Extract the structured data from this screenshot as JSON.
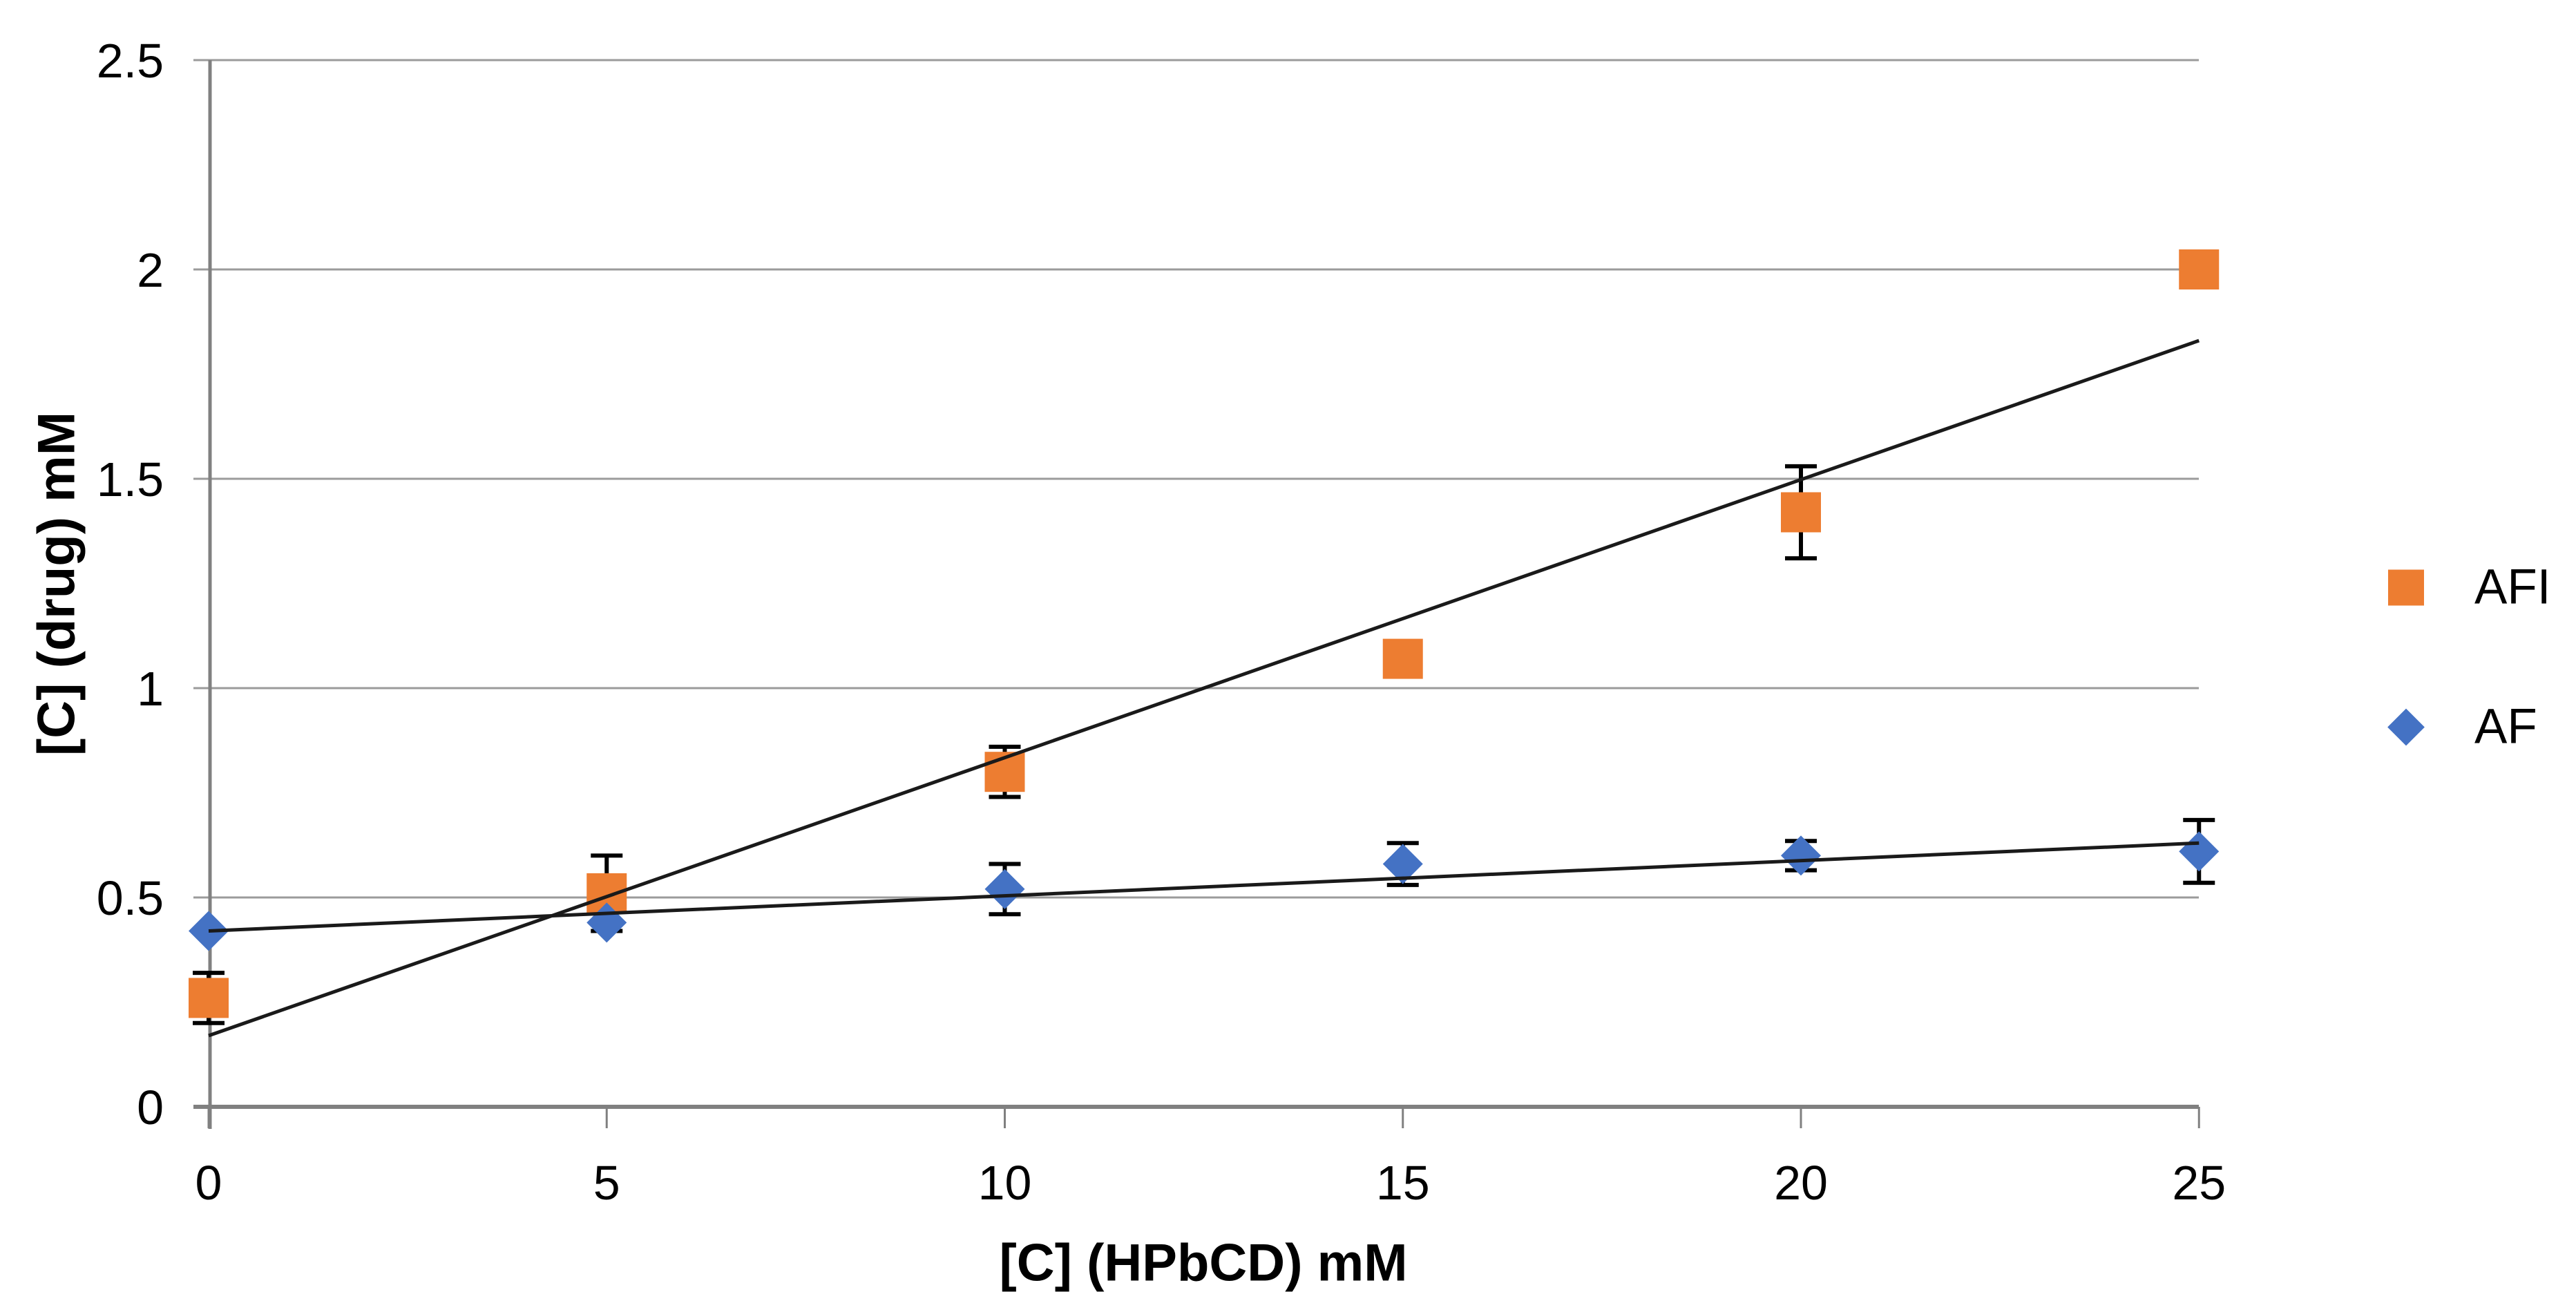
{
  "chart_data": {
    "type": "scatter",
    "title": "",
    "xlabel": "[C] (HPbCD) mM",
    "ylabel": "[C] (drug) mM",
    "xlim": [
      0,
      25
    ],
    "ylim": [
      0,
      2.5
    ],
    "grid": "horizontal",
    "legend_position": "right-middle",
    "x_ticks": [
      {
        "label": "0",
        "v": 0
      },
      {
        "label": "5",
        "v": 5
      },
      {
        "label": "10",
        "v": 10
      },
      {
        "label": "15",
        "v": 15
      },
      {
        "label": "20",
        "v": 20
      },
      {
        "label": "25",
        "v": 25
      }
    ],
    "y_ticks": [
      {
        "label": "0",
        "v": 0
      },
      {
        "label": "0.5",
        "v": 0.5
      },
      {
        "label": "1",
        "v": 1
      },
      {
        "label": "1.5",
        "v": 1.5
      },
      {
        "label": "2",
        "v": 2
      },
      {
        "label": "2.5",
        "v": 2.5
      }
    ],
    "x": [
      0,
      5,
      10,
      15,
      20,
      25
    ],
    "series": [
      {
        "name": "AFI",
        "marker": "square",
        "color": "#ED7D31",
        "values": [
          0.26,
          0.51,
          0.8,
          1.07,
          1.42,
          2.0
        ],
        "error_bars": [
          0.06,
          0.09,
          0.06,
          0,
          0.11,
          0
        ],
        "trendline": {
          "start": {
            "x": 0,
            "y": 0.17
          },
          "end": {
            "x": 25,
            "y": 1.83
          }
        }
      },
      {
        "name": "AF",
        "marker": "diamond",
        "color": "#4472C4",
        "values": [
          0.42,
          0.44,
          0.52,
          0.58,
          0.6,
          0.61
        ],
        "error_bars": [
          0,
          0,
          0.06,
          0.05,
          0.035,
          0.075
        ],
        "trendline": {
          "start": {
            "x": 0,
            "y": 0.42
          },
          "end": {
            "x": 25,
            "y": 0.63
          }
        }
      }
    ],
    "trendline_color": "#1a1a1a",
    "error_bar_color": "#000000",
    "axis_color": "#808080",
    "gridline_color": "#9b9b9b",
    "text_color": "#000000",
    "background": "#ffffff"
  }
}
